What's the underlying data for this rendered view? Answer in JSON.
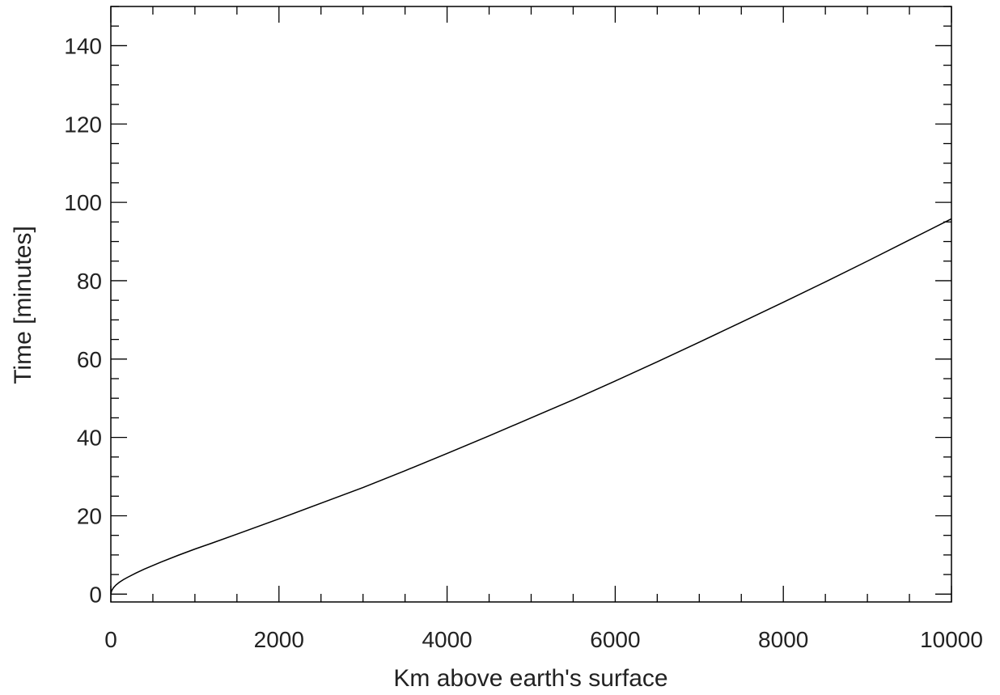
{
  "chart_data": {
    "type": "line",
    "title": "",
    "xlabel": "Km above earth's surface",
    "ylabel": "Time [minutes]",
    "xlim": [
      0,
      10000
    ],
    "ylim": [
      -2,
      150
    ],
    "xticks": [
      0,
      2000,
      4000,
      6000,
      8000,
      10000
    ],
    "xtick_labels": [
      "0",
      "2000",
      "4000",
      "6000",
      "8000",
      "10000"
    ],
    "yticks": [
      0,
      20,
      40,
      60,
      80,
      100,
      120,
      140
    ],
    "ytick_labels": [
      "0",
      "20",
      "40",
      "60",
      "80",
      "100",
      "120",
      "140"
    ],
    "x_minor_step": 500,
    "y_minor_step": 5,
    "grid": false,
    "legend": "none",
    "line_color": "#000000",
    "series": [
      {
        "x": [
          0,
          10,
          30,
          60,
          100,
          150,
          200,
          300,
          400,
          500,
          600,
          800,
          1000,
          1200,
          1500,
          2000,
          2500,
          3000,
          3500,
          4000,
          4500,
          5000,
          5500,
          6000,
          6500,
          7000,
          7500,
          8000,
          8500,
          9000,
          9500,
          10000
        ],
        "y": [
          0,
          0.9,
          1.6,
          2.3,
          3.0,
          3.7,
          4.3,
          5.4,
          6.4,
          7.3,
          8.2,
          9.9,
          11.5,
          13.0,
          15.3,
          19.2,
          23.2,
          27.2,
          31.5,
          35.9,
          40.4,
          45.0,
          49.6,
          54.4,
          59.3,
          64.3,
          69.4,
          74.5,
          79.7,
          85.0,
          90.4,
          95.8
        ]
      }
    ]
  }
}
